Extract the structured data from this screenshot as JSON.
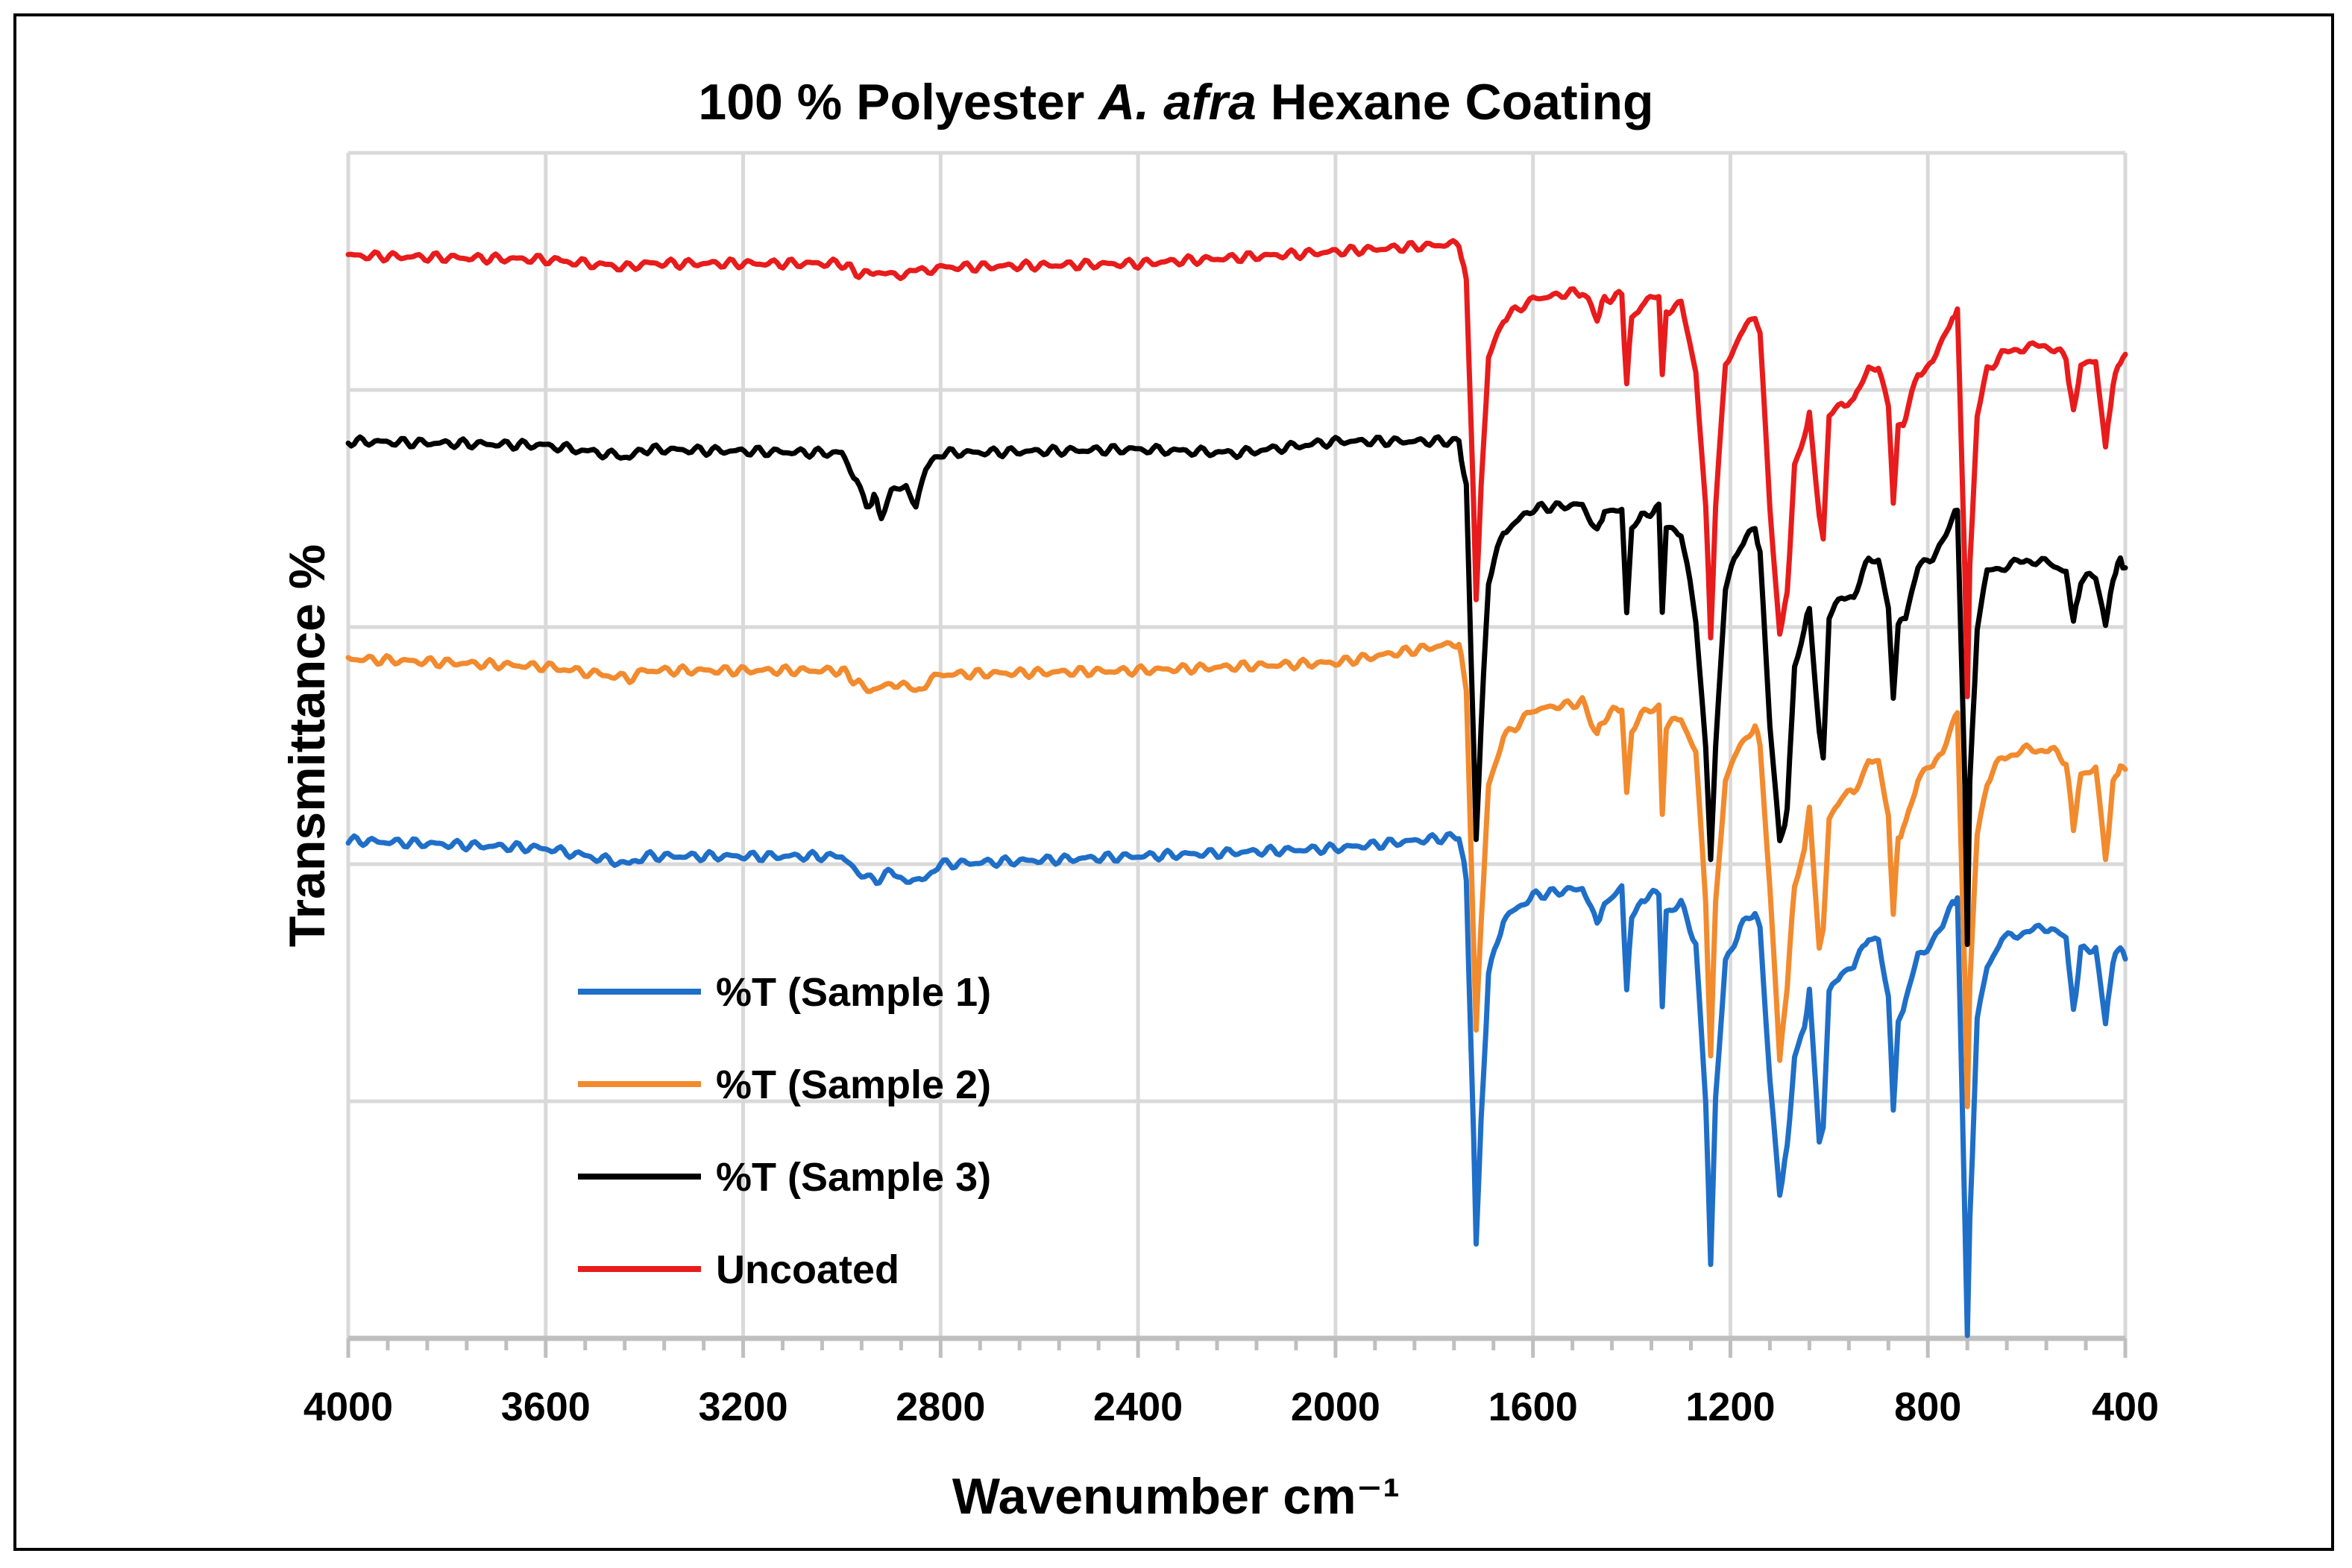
{
  "chart_data": {
    "type": "line",
    "title": "100 % Polyester ",
    "title_italic": "A. afra",
    "title_end": " Hexane Coating",
    "xlabel": "Wavenumber cm⁻¹",
    "ylabel": "Transmittance %",
    "xlim": [
      4000,
      400
    ],
    "x_ticks": [
      4000,
      3600,
      3200,
      2800,
      2400,
      2000,
      1600,
      1200,
      800,
      400
    ],
    "y_ticks_labeled": false,
    "grid": true,
    "legend_position": "lower-left",
    "series": [
      {
        "name": "%T (Sample 1)",
        "color": "#1f6fc8",
        "baseline": 12.6,
        "points": [
          [
            4000,
            12.6
          ],
          [
            3600,
            12.4
          ],
          [
            3430,
            12.0
          ],
          [
            3400,
            12.2
          ],
          [
            3000,
            12.2
          ],
          [
            2960,
            11.7
          ],
          [
            2930,
            11.6
          ],
          [
            2900,
            11.8
          ],
          [
            2850,
            11.5
          ],
          [
            2800,
            12.0
          ],
          [
            2400,
            12.2
          ],
          [
            2000,
            12.4
          ],
          [
            1750,
            12.7
          ],
          [
            1735,
            11.6
          ],
          [
            1720,
            5.0
          ],
          [
            1715,
            2.4
          ],
          [
            1705,
            5.5
          ],
          [
            1690,
            9.2
          ],
          [
            1660,
            10.6
          ],
          [
            1600,
            11.2
          ],
          [
            1500,
            11.4
          ],
          [
            1470,
            10.5
          ],
          [
            1455,
            11.0
          ],
          [
            1420,
            11.4
          ],
          [
            1410,
            8.8
          ],
          [
            1400,
            10.7
          ],
          [
            1380,
            11.1
          ],
          [
            1345,
            11.3
          ],
          [
            1338,
            8.5
          ],
          [
            1330,
            10.8
          ],
          [
            1300,
            11.0
          ],
          [
            1270,
            10.0
          ],
          [
            1250,
            6.0
          ],
          [
            1240,
            1.9
          ],
          [
            1230,
            6.0
          ],
          [
            1210,
            9.5
          ],
          [
            1180,
            10.4
          ],
          [
            1150,
            10.8
          ],
          [
            1140,
            10.3
          ],
          [
            1120,
            6.5
          ],
          [
            1100,
            3.7
          ],
          [
            1085,
            4.8
          ],
          [
            1070,
            7.1
          ],
          [
            1050,
            7.8
          ],
          [
            1040,
            8.9
          ],
          [
            1020,
            4.9
          ],
          [
            1012,
            5.4
          ],
          [
            1000,
            8.7
          ],
          [
            975,
            9.3
          ],
          [
            950,
            9.4
          ],
          [
            920,
            10.2
          ],
          [
            900,
            10.1
          ],
          [
            880,
            8.6
          ],
          [
            870,
            5.8
          ],
          [
            860,
            8.0
          ],
          [
            845,
            8.5
          ],
          [
            820,
            9.7
          ],
          [
            790,
            10.0
          ],
          [
            770,
            10.4
          ],
          [
            750,
            11.0
          ],
          [
            740,
            11.2
          ],
          [
            725,
            3.0
          ],
          [
            720,
            0.0
          ],
          [
            715,
            3.0
          ],
          [
            700,
            8.0
          ],
          [
            680,
            9.4
          ],
          [
            650,
            10.1
          ],
          [
            600,
            10.3
          ],
          [
            550,
            10.4
          ],
          [
            520,
            10.1
          ],
          [
            505,
            8.3
          ],
          [
            490,
            9.8
          ],
          [
            460,
            9.9
          ],
          [
            440,
            8.0
          ],
          [
            425,
            9.5
          ],
          [
            410,
            10.0
          ],
          [
            400,
            9.6
          ]
        ]
      },
      {
        "name": "%T (Sample 2)",
        "color": "#f28a2e",
        "baseline": 17.2,
        "points": [
          [
            4000,
            17.2
          ],
          [
            3600,
            17.0
          ],
          [
            3430,
            16.7
          ],
          [
            3400,
            16.9
          ],
          [
            3000,
            16.9
          ],
          [
            2960,
            16.5
          ],
          [
            2930,
            16.4
          ],
          [
            2900,
            16.6
          ],
          [
            2850,
            16.4
          ],
          [
            2800,
            16.8
          ],
          [
            2400,
            16.9
          ],
          [
            2000,
            17.1
          ],
          [
            1750,
            17.6
          ],
          [
            1735,
            16.4
          ],
          [
            1720,
            10.0
          ],
          [
            1715,
            7.8
          ],
          [
            1705,
            10.5
          ],
          [
            1690,
            14.0
          ],
          [
            1660,
            15.2
          ],
          [
            1600,
            15.9
          ],
          [
            1500,
            16.1
          ],
          [
            1470,
            15.3
          ],
          [
            1455,
            15.7
          ],
          [
            1420,
            16.0
          ],
          [
            1410,
            13.7
          ],
          [
            1400,
            15.4
          ],
          [
            1380,
            15.8
          ],
          [
            1345,
            16.0
          ],
          [
            1338,
            13.3
          ],
          [
            1330,
            15.5
          ],
          [
            1300,
            15.7
          ],
          [
            1270,
            14.8
          ],
          [
            1250,
            11.0
          ],
          [
            1240,
            7.2
          ],
          [
            1230,
            11.0
          ],
          [
            1210,
            14.2
          ],
          [
            1180,
            15.0
          ],
          [
            1150,
            15.5
          ],
          [
            1140,
            15.0
          ],
          [
            1120,
            11.5
          ],
          [
            1100,
            7.1
          ],
          [
            1085,
            8.9
          ],
          [
            1070,
            11.5
          ],
          [
            1050,
            12.4
          ],
          [
            1040,
            13.4
          ],
          [
            1020,
            9.8
          ],
          [
            1012,
            10.3
          ],
          [
            1000,
            13.2
          ],
          [
            975,
            13.7
          ],
          [
            950,
            13.8
          ],
          [
            920,
            14.6
          ],
          [
            900,
            14.5
          ],
          [
            880,
            13.2
          ],
          [
            870,
            10.7
          ],
          [
            860,
            12.7
          ],
          [
            845,
            13.0
          ],
          [
            820,
            14.2
          ],
          [
            790,
            14.5
          ],
          [
            770,
            14.9
          ],
          [
            750,
            15.6
          ],
          [
            740,
            15.8
          ],
          [
            725,
            9.0
          ],
          [
            720,
            5.8
          ],
          [
            715,
            9.0
          ],
          [
            700,
            12.8
          ],
          [
            680,
            14.1
          ],
          [
            650,
            14.7
          ],
          [
            600,
            14.9
          ],
          [
            550,
            14.9
          ],
          [
            520,
            14.6
          ],
          [
            505,
            12.9
          ],
          [
            490,
            14.3
          ],
          [
            460,
            14.4
          ],
          [
            440,
            12.1
          ],
          [
            425,
            14.0
          ],
          [
            410,
            14.5
          ],
          [
            400,
            14.4
          ]
        ]
      },
      {
        "name": "%T (Sample 3)",
        "color": "#000000",
        "baseline": 22.7,
        "points": [
          [
            4000,
            22.7
          ],
          [
            3600,
            22.6
          ],
          [
            3430,
            22.3
          ],
          [
            3400,
            22.5
          ],
          [
            3000,
            22.4
          ],
          [
            2970,
            21.7
          ],
          [
            2950,
            21.0
          ],
          [
            2935,
            21.3
          ],
          [
            2920,
            20.8
          ],
          [
            2900,
            21.4
          ],
          [
            2870,
            21.6
          ],
          [
            2850,
            21.1
          ],
          [
            2830,
            22.0
          ],
          [
            2800,
            22.4
          ],
          [
            2400,
            22.5
          ],
          [
            2200,
            22.4
          ],
          [
            2000,
            22.7
          ],
          [
            1750,
            22.7
          ],
          [
            1735,
            21.5
          ],
          [
            1720,
            15.0
          ],
          [
            1715,
            12.6
          ],
          [
            1705,
            15.5
          ],
          [
            1690,
            19.2
          ],
          [
            1660,
            20.4
          ],
          [
            1600,
            21.0
          ],
          [
            1500,
            21.1
          ],
          [
            1470,
            20.4
          ],
          [
            1455,
            20.9
          ],
          [
            1420,
            21.0
          ],
          [
            1410,
            18.4
          ],
          [
            1400,
            20.4
          ],
          [
            1380,
            20.8
          ],
          [
            1345,
            21.0
          ],
          [
            1338,
            18.3
          ],
          [
            1330,
            20.5
          ],
          [
            1300,
            20.4
          ],
          [
            1270,
            18.2
          ],
          [
            1250,
            15.0
          ],
          [
            1240,
            12.1
          ],
          [
            1230,
            15.0
          ],
          [
            1210,
            19.0
          ],
          [
            1180,
            20.1
          ],
          [
            1150,
            20.5
          ],
          [
            1140,
            19.9
          ],
          [
            1120,
            15.5
          ],
          [
            1100,
            12.5
          ],
          [
            1085,
            13.4
          ],
          [
            1070,
            17.0
          ],
          [
            1050,
            17.9
          ],
          [
            1040,
            18.5
          ],
          [
            1020,
            15.4
          ],
          [
            1012,
            14.7
          ],
          [
            1000,
            18.3
          ],
          [
            975,
            18.7
          ],
          [
            950,
            18.8
          ],
          [
            920,
            19.7
          ],
          [
            900,
            19.7
          ],
          [
            880,
            18.6
          ],
          [
            870,
            16.1
          ],
          [
            860,
            18.1
          ],
          [
            845,
            18.3
          ],
          [
            820,
            19.5
          ],
          [
            790,
            19.8
          ],
          [
            770,
            20.2
          ],
          [
            750,
            20.7
          ],
          [
            740,
            21.0
          ],
          [
            725,
            14.0
          ],
          [
            720,
            10.0
          ],
          [
            715,
            14.0
          ],
          [
            700,
            18.0
          ],
          [
            680,
            19.4
          ],
          [
            650,
            19.5
          ],
          [
            600,
            19.7
          ],
          [
            550,
            19.6
          ],
          [
            520,
            19.4
          ],
          [
            505,
            18.1
          ],
          [
            490,
            19.2
          ],
          [
            460,
            19.3
          ],
          [
            440,
            18.1
          ],
          [
            425,
            19.2
          ],
          [
            410,
            19.7
          ],
          [
            400,
            19.5
          ]
        ]
      },
      {
        "name": "Uncoated",
        "color": "#e81c1c",
        "baseline": 27.4,
        "points": [
          [
            4000,
            27.4
          ],
          [
            3600,
            27.3
          ],
          [
            3430,
            27.1
          ],
          [
            3400,
            27.2
          ],
          [
            3000,
            27.2
          ],
          [
            2960,
            26.9
          ],
          [
            2930,
            27.0
          ],
          [
            2900,
            26.9
          ],
          [
            2850,
            27.0
          ],
          [
            2800,
            27.1
          ],
          [
            2400,
            27.2
          ],
          [
            2000,
            27.5
          ],
          [
            1750,
            27.7
          ],
          [
            1735,
            26.8
          ],
          [
            1720,
            21.0
          ],
          [
            1715,
            18.8
          ],
          [
            1705,
            21.5
          ],
          [
            1690,
            24.8
          ],
          [
            1660,
            25.8
          ],
          [
            1600,
            26.3
          ],
          [
            1500,
            26.5
          ],
          [
            1470,
            25.8
          ],
          [
            1455,
            26.3
          ],
          [
            1420,
            26.4
          ],
          [
            1410,
            24.2
          ],
          [
            1400,
            25.8
          ],
          [
            1380,
            26.2
          ],
          [
            1345,
            26.4
          ],
          [
            1338,
            24.4
          ],
          [
            1330,
            26.0
          ],
          [
            1300,
            26.2
          ],
          [
            1270,
            24.5
          ],
          [
            1250,
            21.0
          ],
          [
            1240,
            17.8
          ],
          [
            1230,
            21.0
          ],
          [
            1210,
            24.6
          ],
          [
            1180,
            25.4
          ],
          [
            1150,
            25.9
          ],
          [
            1140,
            25.4
          ],
          [
            1120,
            21.0
          ],
          [
            1100,
            17.8
          ],
          [
            1085,
            18.9
          ],
          [
            1070,
            22.0
          ],
          [
            1050,
            22.8
          ],
          [
            1040,
            23.4
          ],
          [
            1020,
            20.8
          ],
          [
            1012,
            20.2
          ],
          [
            1000,
            23.3
          ],
          [
            975,
            23.7
          ],
          [
            950,
            23.7
          ],
          [
            920,
            24.6
          ],
          [
            900,
            24.6
          ],
          [
            880,
            23.6
          ],
          [
            870,
            21.2
          ],
          [
            860,
            23.0
          ],
          [
            845,
            23.3
          ],
          [
            820,
            24.4
          ],
          [
            790,
            24.7
          ],
          [
            770,
            25.2
          ],
          [
            750,
            25.8
          ],
          [
            740,
            26.0
          ],
          [
            725,
            19.5
          ],
          [
            720,
            16.2
          ],
          [
            715,
            19.5
          ],
          [
            700,
            23.3
          ],
          [
            680,
            24.5
          ],
          [
            650,
            24.9
          ],
          [
            600,
            25.1
          ],
          [
            550,
            25.1
          ],
          [
            520,
            24.8
          ],
          [
            505,
            23.4
          ],
          [
            490,
            24.6
          ],
          [
            460,
            24.8
          ],
          [
            440,
            22.5
          ],
          [
            425,
            24.2
          ],
          [
            410,
            24.7
          ],
          [
            400,
            24.9
          ]
        ]
      }
    ]
  }
}
